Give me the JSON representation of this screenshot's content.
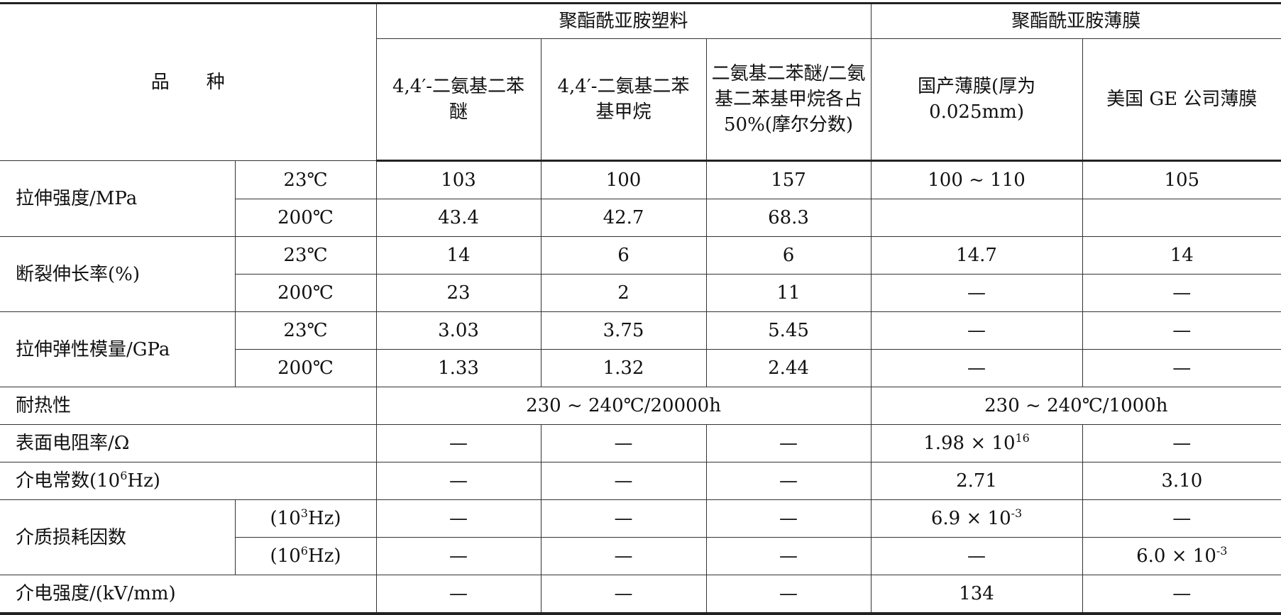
{
  "header": {
    "variety": "品　　种",
    "group1": "聚酯酰亚胺塑料",
    "group2": "聚酯酰亚胺薄膜",
    "cols": [
      "4,4′-二氨基二苯醚",
      "4,4′-二氨基二苯基甲烷",
      "二氨基二苯醚/二氨基二苯基甲烷各占50%(摩尔分数)",
      "国产薄膜(厚为0.025mm)",
      "美国 GE 公司薄膜"
    ]
  },
  "rows": {
    "tensile": {
      "label": "拉伸强度/MPa",
      "t23": "23℃",
      "t200": "200℃",
      "v23": [
        "103",
        "100",
        "157",
        "100 ~ 110",
        "105"
      ],
      "v200": [
        "43.4",
        "42.7",
        "68.3",
        "",
        ""
      ]
    },
    "elong": {
      "label": "断裂伸长率(%)",
      "t23": "23℃",
      "t200": "200℃",
      "v23": [
        "14",
        "6",
        "6",
        "14.7",
        "14"
      ],
      "v200": [
        "23",
        "2",
        "11",
        "—",
        "—"
      ]
    },
    "modulus": {
      "label": "拉伸弹性模量/GPa",
      "t23": "23℃",
      "t200": "200℃",
      "v23": [
        "3.03",
        "3.75",
        "5.45",
        "—",
        "—"
      ],
      "v200": [
        "1.33",
        "1.32",
        "2.44",
        "—",
        "—"
      ]
    },
    "heat": {
      "label": "耐热性",
      "plastic": "230 ~ 240℃/20000h",
      "film": "230 ~ 240℃/1000h"
    },
    "resist": {
      "label": "表面电阻率/Ω",
      "v": [
        "—",
        "—",
        "—",
        "1.98 × 10",
        "—"
      ],
      "exp": "16"
    },
    "dielec": {
      "label": "介电常数(10",
      "label_exp": "6",
      "label_end": "Hz)",
      "v": [
        "—",
        "—",
        "—",
        "2.71",
        "3.10"
      ]
    },
    "loss": {
      "label": "介质损耗因数",
      "f1": "(10",
      "f1_exp": "3",
      "f2": "(10",
      "f2_exp": "6",
      "f_end": "Hz)",
      "v1": [
        "—",
        "—",
        "—",
        "6.9 × 10",
        "—"
      ],
      "v1_exp": "-3",
      "v2": [
        "—",
        "—",
        "—",
        "—",
        "6.0 × 10"
      ],
      "v2_exp": "-3"
    },
    "strength": {
      "label": "介电强度/(kV/mm)",
      "v": [
        "—",
        "—",
        "—",
        "134",
        "—"
      ]
    }
  }
}
